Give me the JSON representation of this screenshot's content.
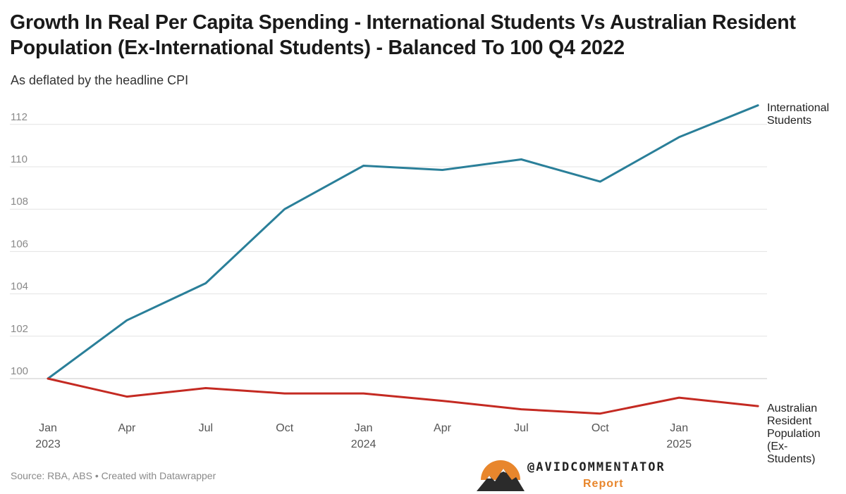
{
  "title": "Growth In Real Per Capita Spending - International Students Vs Australian Resident Population (Ex-International Students) - Balanced To 100 Q4 2022",
  "subtitle": "As deflated by the headline CPI",
  "source": "Source: RBA, ABS • Created with Datawrapper",
  "logo": {
    "handle": "@AVIDCOMMENTATOR",
    "tagline": "Report"
  },
  "chart_data": {
    "type": "line",
    "x": [
      "2023-01",
      "2023-04",
      "2023-07",
      "2023-10",
      "2024-01",
      "2024-04",
      "2024-07",
      "2024-10",
      "2025-01",
      "2025-04"
    ],
    "x_tick_labels": [
      [
        "Jan",
        "2023"
      ],
      [
        "Apr",
        ""
      ],
      [
        "Jul",
        ""
      ],
      [
        "Oct",
        ""
      ],
      [
        "Jan",
        "2024"
      ],
      [
        "Apr",
        ""
      ],
      [
        "Jul",
        ""
      ],
      [
        "Oct",
        ""
      ],
      [
        "Jan",
        "2025"
      ]
    ],
    "y_ticks": [
      100,
      102,
      104,
      106,
      108,
      110,
      112
    ],
    "ylim": [
      98.4,
      113
    ],
    "grid": true,
    "legend": "direct labels at line ends (right)",
    "series": [
      {
        "name": "International Students",
        "label_lines": [
          "International",
          "Students"
        ],
        "color": "#2a7f99",
        "values": [
          100,
          102.75,
          104.5,
          108.0,
          110.05,
          109.85,
          110.35,
          109.3,
          111.4,
          112.9
        ]
      },
      {
        "name": "Australian Resident Population (Ex-Students)",
        "label_lines": [
          "Australian",
          "Resident",
          "Population",
          "(Ex-",
          "Students)"
        ],
        "color": "#c42a22",
        "values": [
          100,
          99.15,
          99.55,
          99.3,
          99.3,
          98.95,
          98.55,
          98.35,
          99.1,
          98.7
        ]
      }
    ]
  }
}
